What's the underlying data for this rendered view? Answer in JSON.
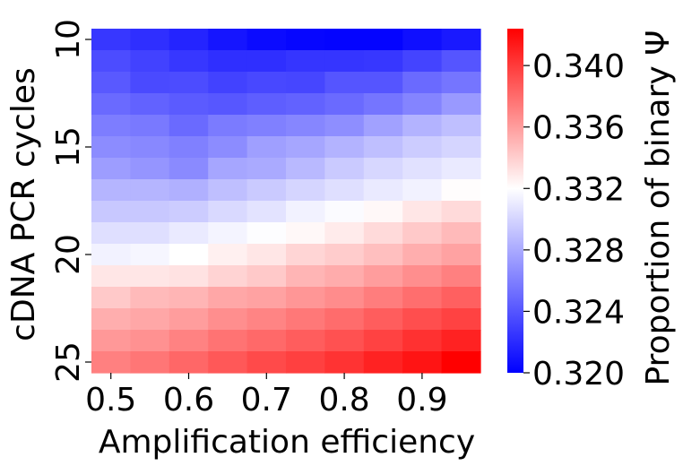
{
  "chart_data": {
    "type": "heatmap",
    "title": "",
    "xlabel": "Amplification efficiency",
    "ylabel": "cDNA PCR cycles",
    "x_values": [
      0.5,
      0.55,
      0.6,
      0.65,
      0.7,
      0.75,
      0.8,
      0.85,
      0.9,
      0.95
    ],
    "x_tick_labels": [
      "0.5",
      "0.6",
      "0.7",
      "0.8",
      "0.9"
    ],
    "x_tick_values": [
      0.5,
      0.6,
      0.7,
      0.8,
      0.9
    ],
    "y_values": [
      10,
      11,
      12,
      13,
      14,
      15,
      16,
      17,
      18,
      19,
      20,
      21,
      22,
      23,
      24,
      25
    ],
    "y_tick_labels": [
      "10",
      "15",
      "20",
      "25"
    ],
    "y_tick_values": [
      10,
      15,
      20,
      25
    ],
    "z": [
      [
        0.3226,
        0.3222,
        0.3217,
        0.321,
        0.3205,
        0.3203,
        0.3202,
        0.3202,
        0.3207,
        0.3212
      ],
      [
        0.3236,
        0.3231,
        0.3226,
        0.3222,
        0.3222,
        0.3225,
        0.3225,
        0.3226,
        0.3232,
        0.324
      ],
      [
        0.3242,
        0.3235,
        0.3236,
        0.3231,
        0.3234,
        0.3233,
        0.324,
        0.324,
        0.325,
        0.3255
      ],
      [
        0.325,
        0.3246,
        0.3243,
        0.3241,
        0.3244,
        0.3246,
        0.325,
        0.3255,
        0.3262,
        0.3272
      ],
      [
        0.3259,
        0.3257,
        0.325,
        0.3258,
        0.326,
        0.3263,
        0.3267,
        0.3276,
        0.3284,
        0.329
      ],
      [
        0.3266,
        0.3264,
        0.326,
        0.3266,
        0.3275,
        0.3278,
        0.3284,
        0.329,
        0.3296,
        0.33
      ],
      [
        0.3274,
        0.327,
        0.3265,
        0.3278,
        0.328,
        0.3287,
        0.3295,
        0.3301,
        0.3306,
        0.331
      ],
      [
        0.3285,
        0.3285,
        0.3283,
        0.329,
        0.3295,
        0.33,
        0.3305,
        0.331,
        0.3314,
        0.3321
      ],
      [
        0.3294,
        0.3294,
        0.3296,
        0.3302,
        0.3307,
        0.3314,
        0.3318,
        0.3323,
        0.333,
        0.3335
      ],
      [
        0.3305,
        0.3305,
        0.331,
        0.3315,
        0.3319,
        0.3323,
        0.3328,
        0.3335,
        0.3342,
        0.3348
      ],
      [
        0.3314,
        0.3316,
        0.332,
        0.3326,
        0.333,
        0.3337,
        0.3341,
        0.3346,
        0.3353,
        0.3358
      ],
      [
        0.333,
        0.333,
        0.3332,
        0.3338,
        0.3342,
        0.335,
        0.3354,
        0.336,
        0.3366,
        0.3372
      ],
      [
        0.3342,
        0.3348,
        0.335,
        0.3356,
        0.3358,
        0.3363,
        0.3367,
        0.3373,
        0.3379,
        0.3385
      ],
      [
        0.3353,
        0.3356,
        0.336,
        0.3366,
        0.337,
        0.3375,
        0.338,
        0.3386,
        0.3392,
        0.3397
      ],
      [
        0.3362,
        0.3365,
        0.3371,
        0.3377,
        0.3381,
        0.3386,
        0.3391,
        0.3397,
        0.3404,
        0.341
      ],
      [
        0.3372,
        0.3376,
        0.3382,
        0.3388,
        0.3394,
        0.3398,
        0.3403,
        0.341,
        0.3416,
        0.3424
      ]
    ],
    "colorbar": {
      "label": "Proportion of binary Ψ",
      "min": 0.32,
      "max": 0.3424,
      "center": 0.332,
      "tick_labels": [
        "0.320",
        "0.324",
        "0.328",
        "0.332",
        "0.336",
        "0.340"
      ],
      "tick_values": [
        0.32,
        0.324,
        0.328,
        0.332,
        0.336,
        0.34
      ],
      "colors": {
        "low": "#0000ff",
        "mid": "#ffffff",
        "high": "#ff0000"
      }
    },
    "grid": false
  }
}
